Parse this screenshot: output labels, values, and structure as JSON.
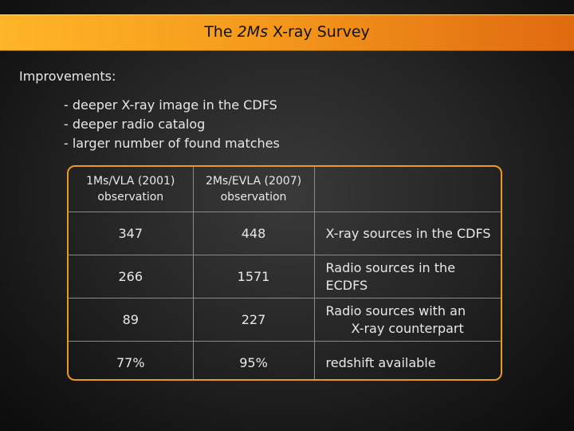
{
  "title": {
    "prefix": "The ",
    "italic": "2Ms",
    "suffix": " X-ray Survey"
  },
  "section_label": "Improvements:",
  "bullets": [
    "- deeper X-ray image in the CDFS",
    "- deeper radio catalog",
    "- larger number of found matches"
  ],
  "table": {
    "headers": [
      {
        "line1": "1Ms/VLA (2001)",
        "line2": "observation"
      },
      {
        "line1": "2Ms/EVLA (2007)",
        "line2": "observation"
      }
    ],
    "rows": [
      {
        "v1": "347",
        "v2": "448",
        "desc1": "X-ray sources in the CDFS",
        "desc2": ""
      },
      {
        "v1": "266",
        "v2": "1571",
        "desc1": "Radio sources in the ECDFS",
        "desc2": ""
      },
      {
        "v1": "89",
        "v2": "227",
        "desc1": "Radio sources with an",
        "desc2": "X-ray counterpart"
      },
      {
        "v1": "77%",
        "v2": "95%",
        "desc1": "redshift available",
        "desc2": ""
      }
    ]
  },
  "colors": {
    "title_bar_start": "#ffb528",
    "title_bar_end": "#e06a10",
    "table_border": "#e89a22"
  }
}
